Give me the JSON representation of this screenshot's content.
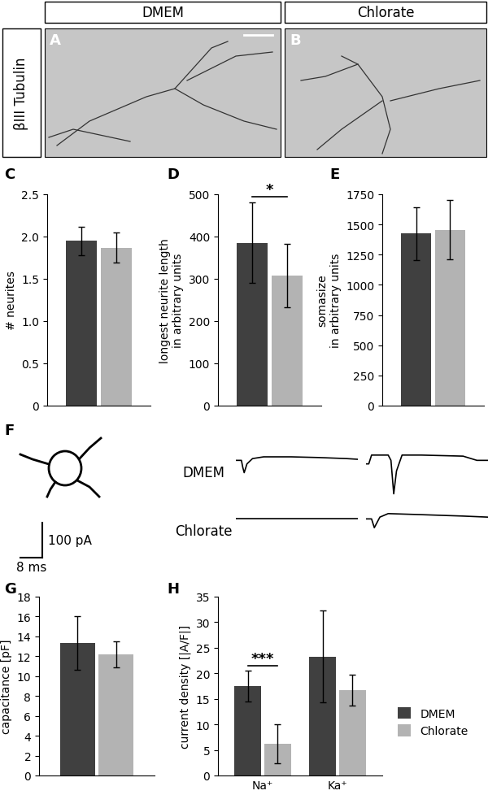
{
  "header": {
    "columns": [
      "DMEM",
      "Chlorate"
    ],
    "row_label": "βIII Tubulin"
  },
  "images": [
    "A",
    "B"
  ],
  "chart_data": [
    {
      "panel": "C",
      "type": "bar",
      "categories": [
        null
      ],
      "series": [
        {
          "name": "DMEM",
          "color": "#404040",
          "values": [
            1.95
          ],
          "errors": [
            0.17
          ]
        },
        {
          "name": "Chlorate",
          "color": "#b3b3b3",
          "values": [
            1.87
          ],
          "errors": [
            0.18
          ]
        }
      ],
      "y_label": "# neurites",
      "ylim": [
        0,
        2.5
      ],
      "yticks": [
        0,
        0.5,
        {
          "value": 1,
          "label": "1.0"
        },
        1.5,
        {
          "value": 2,
          "label": "2.0"
        },
        2.5
      ],
      "tick_labels": "y"
    },
    {
      "panel": "D",
      "type": "bar",
      "categories": [
        null
      ],
      "series": [
        {
          "name": "DMEM",
          "color": "#404040",
          "values": [
            385
          ],
          "errors": [
            95
          ]
        },
        {
          "name": "Chlorate",
          "color": "#b3b3b3",
          "values": [
            308
          ],
          "errors": [
            75
          ]
        }
      ],
      "y_label": "longest neurite length\nin arbitrary units",
      "ylim": [
        0,
        500
      ],
      "yticks": [
        0,
        100,
        200,
        300,
        400,
        500
      ],
      "annotations": [
        {
          "text": "*"
        }
      ],
      "tick_labels": "y"
    },
    {
      "panel": "E",
      "type": "bar",
      "categories": [
        null
      ],
      "series": [
        {
          "name": "DMEM",
          "color": "#404040",
          "values": [
            1425
          ],
          "errors": [
            220
          ]
        },
        {
          "name": "Chlorate",
          "color": "#b3b3b3",
          "values": [
            1455
          ],
          "errors": [
            245
          ]
        }
      ],
      "y_label": "somasize\nin arbitrary units",
      "ylim": [
        0,
        1750
      ],
      "yticks": [
        0,
        250,
        500,
        750,
        1000,
        1250,
        1500,
        1750
      ],
      "tick_labels": "y"
    },
    {
      "panel": "G",
      "type": "bar",
      "categories": [
        null
      ],
      "series": [
        {
          "name": "DMEM",
          "color": "#404040",
          "values": [
            13.3
          ],
          "errors": [
            2.7
          ]
        },
        {
          "name": "Chlorate",
          "color": "#b3b3b3",
          "values": [
            12.2
          ],
          "errors": [
            1.3
          ]
        }
      ],
      "y_label": "capacitance [pF]",
      "ylim": [
        0,
        18
      ],
      "yticks": [
        0,
        2,
        4,
        6,
        8,
        10,
        12,
        14,
        16,
        18
      ],
      "tick_labels": "y"
    },
    {
      "panel": "H",
      "type": "bar",
      "categories": [
        "Na⁺",
        "Ka⁺"
      ],
      "series": [
        {
          "name": "DMEM",
          "color": "#404040",
          "values": [
            17.5,
            23.3
          ],
          "errors": [
            3,
            9
          ]
        },
        {
          "name": "Chlorate",
          "color": "#b3b3b3",
          "values": [
            6.2,
            16.7
          ],
          "errors": [
            3.8,
            3
          ]
        }
      ],
      "y_label": "current density [|A/F|]",
      "ylim": [
        0,
        35
      ],
      "yticks": [
        0,
        5,
        10,
        15,
        20,
        25,
        30,
        35
      ],
      "annotations": [
        {
          "text": "***",
          "category": "Na⁺"
        }
      ],
      "legend": "center left"
    }
  ],
  "traces": {
    "panel": "F",
    "type": "line",
    "xlim": [
      0,
      44
    ],
    "ylim": [
      -110,
      40
    ],
    "rows": [
      {
        "name": "DMEM",
        "series": [
          {
            "x": [
              0,
              2,
              2.5,
              3,
              4,
              6,
              10,
              20,
              30,
              40,
              44
            ],
            "values": [
              0,
              0,
              -20,
              -35,
              -10,
              5,
              10,
              10,
              8,
              5,
              3
            ]
          },
          {
            "x": [
              0,
              1,
              2,
              8,
              9,
              10,
              11,
              13,
              20,
              35,
              40,
              44
            ],
            "values": [
              -10,
              -10,
              15,
              15,
              0,
              -95,
              -30,
              15,
              15,
              12,
              0,
              0
            ]
          }
        ]
      },
      {
        "name": "Chlorate",
        "series": [
          {
            "x": [
              0,
              10,
              20,
              30,
              44
            ],
            "values": [
              0,
              0,
              0,
              0,
              0
            ]
          },
          {
            "x": [
              0,
              2,
              3,
              4,
              5,
              8,
              20,
              35,
              44
            ],
            "values": [
              0,
              0,
              -25,
              -10,
              5,
              15,
              12,
              8,
              5
            ]
          }
        ]
      }
    ],
    "scale_bar": {
      "current": 100,
      "current_label": "100 pA",
      "time": 8,
      "time_label": "8 ms"
    }
  }
}
